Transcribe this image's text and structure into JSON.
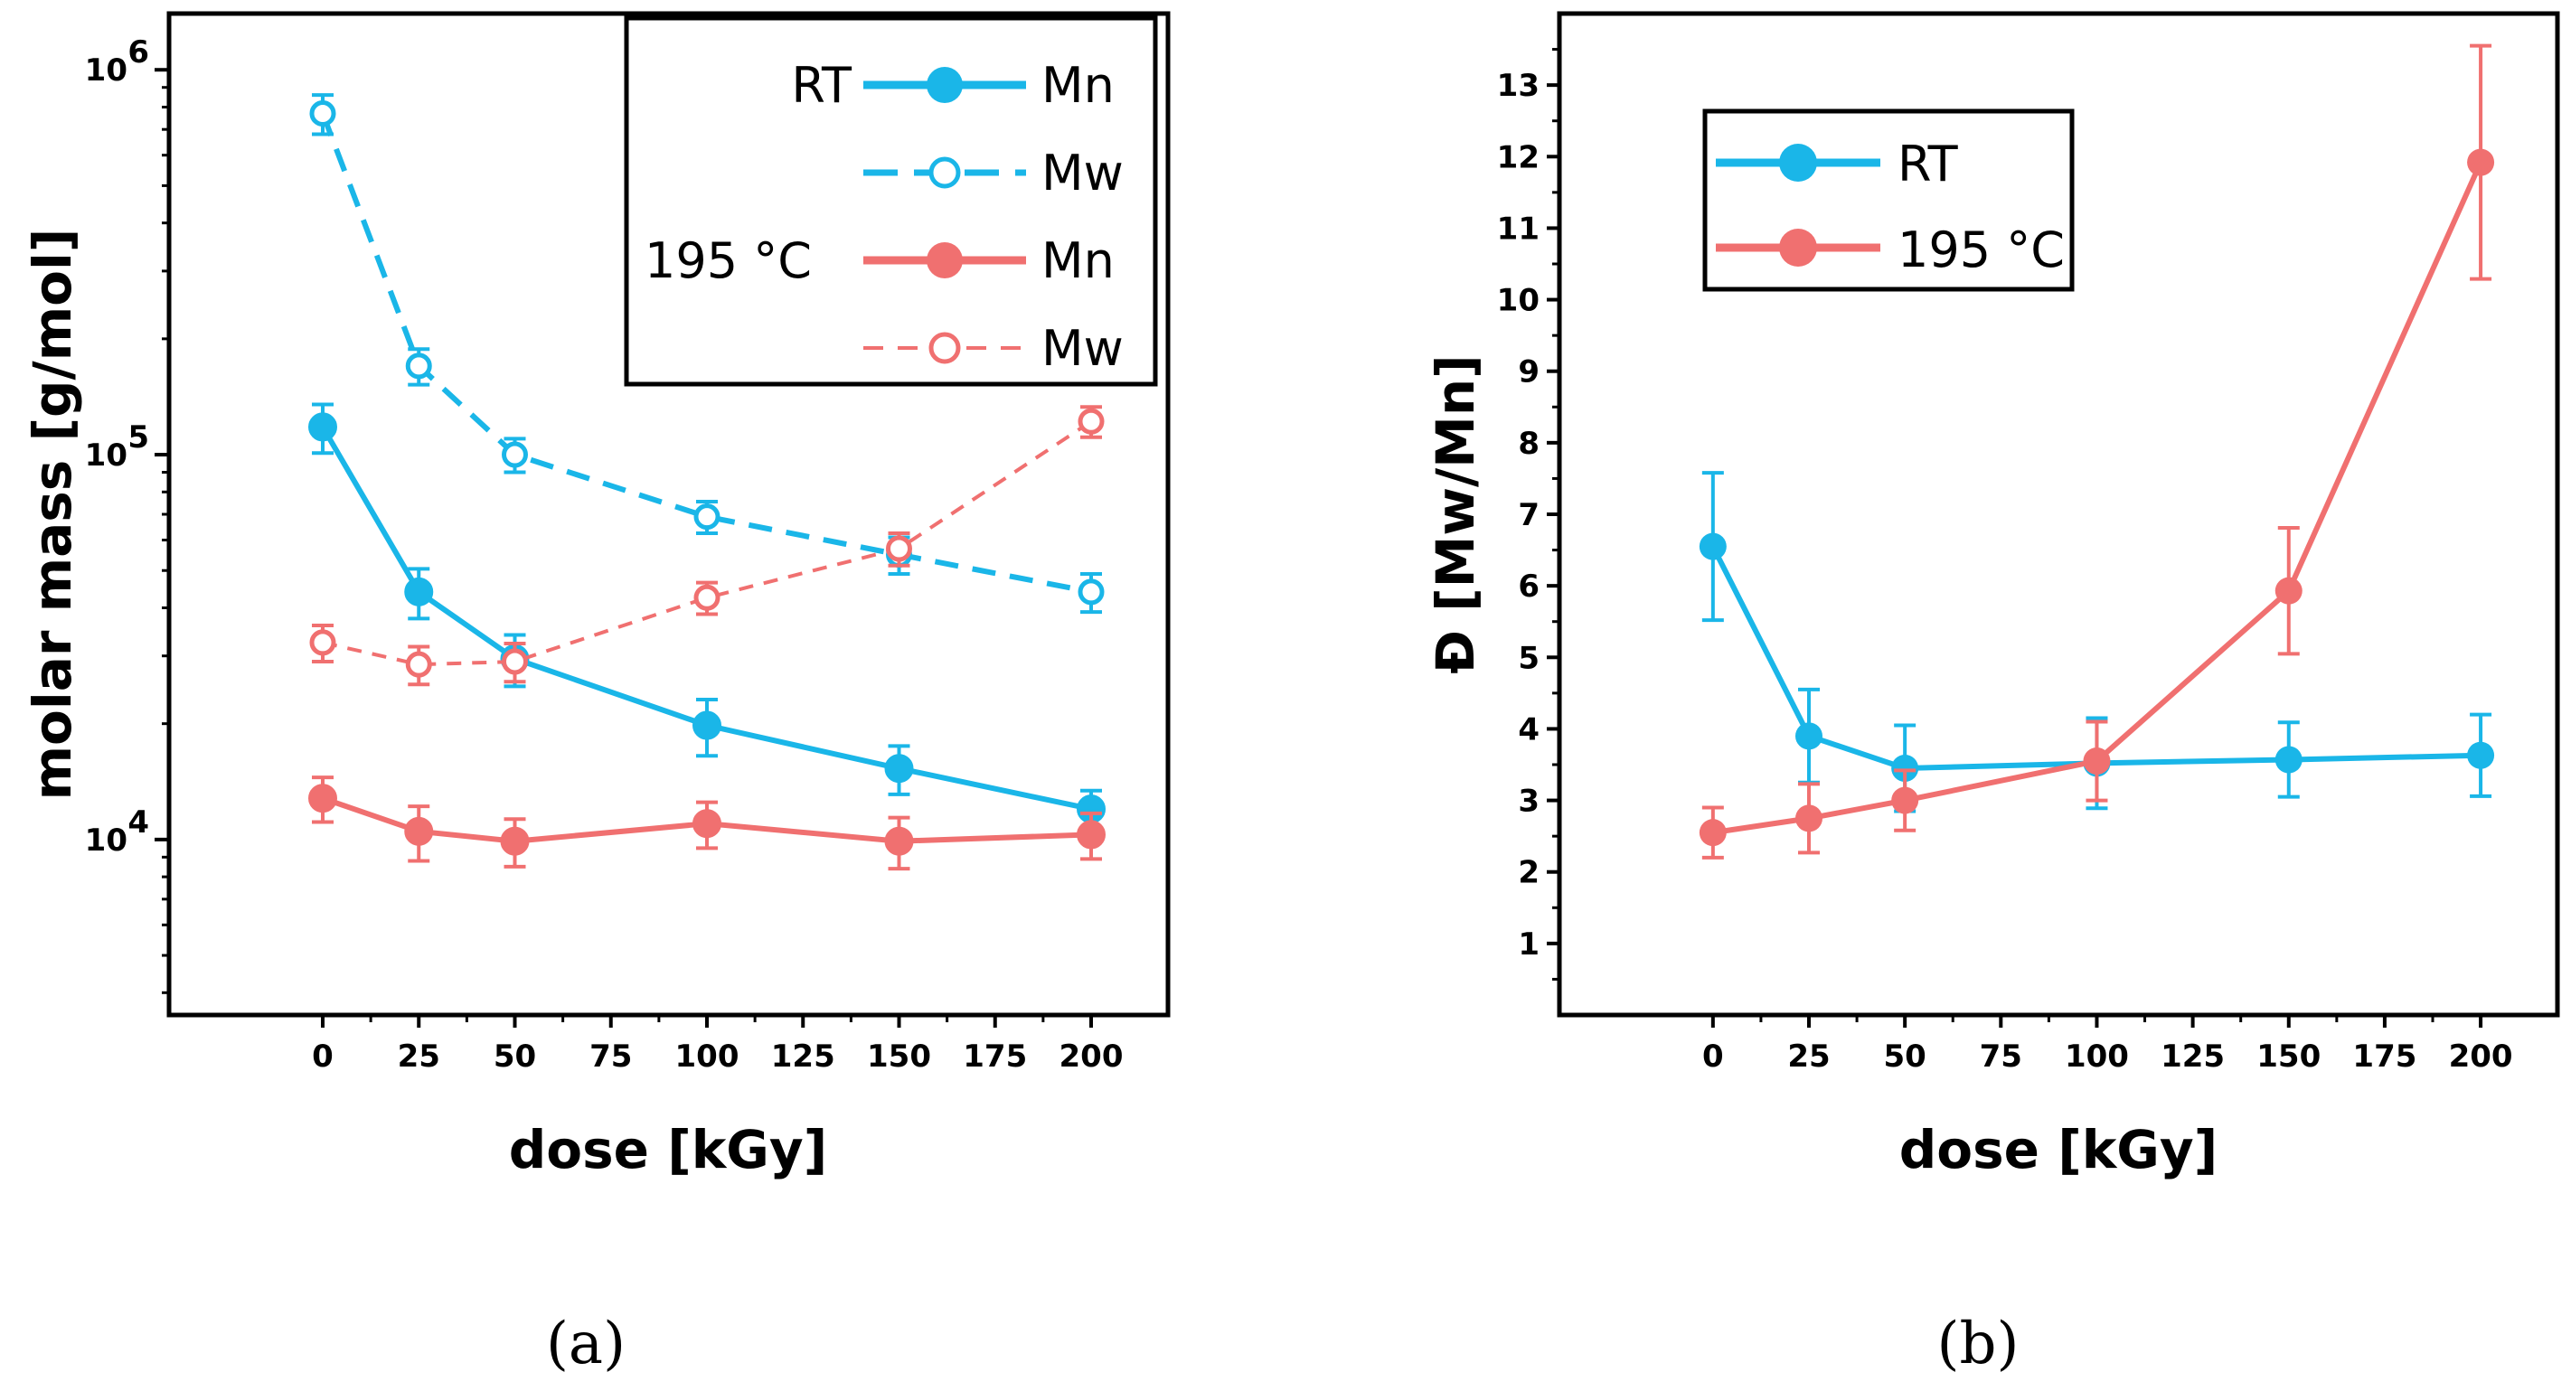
{
  "colors": {
    "rt": "#1ab6e8",
    "t195": "#f07070",
    "axis": "#000000"
  },
  "panels": [
    {
      "label": "(a)"
    },
    {
      "label": "(b)"
    }
  ],
  "chart_data": [
    {
      "type": "line",
      "title": "",
      "xlabel": "dose [kGy]",
      "ylabel": "molar mass [g/mol]",
      "yscale": "log",
      "xlim": [
        -40,
        220
      ],
      "ylim": [
        3500,
        1400000
      ],
      "xticks": [
        0,
        25,
        50,
        75,
        100,
        125,
        150,
        175,
        200
      ],
      "yticks": [
        {
          "value": 10000,
          "mantissa": "10",
          "exponent": "4"
        },
        {
          "value": 100000,
          "mantissa": "10",
          "exponent": "5"
        },
        {
          "value": 1000000,
          "mantissa": "10",
          "exponent": "6"
        }
      ],
      "legend": {
        "position": "top-right",
        "group_labels": [
          "RT",
          "195 °C"
        ],
        "entries": [
          {
            "label": "Mn",
            "series": 0
          },
          {
            "label": "Mw",
            "series": 1
          },
          {
            "label": "Mn",
            "series": 2
          },
          {
            "label": "Mw",
            "series": 3
          }
        ]
      },
      "x": [
        0,
        25,
        50,
        100,
        150,
        200
      ],
      "series": [
        {
          "name": "RT Mn",
          "group": "RT",
          "marker": "filled",
          "line": "solid",
          "color": "#1ab6e8",
          "values": [
            118000,
            44000,
            29500,
            19800,
            15300,
            12000
          ],
          "errors": [
            17000,
            6500,
            4500,
            3300,
            2200,
            1400
          ]
        },
        {
          "name": "RT Mw",
          "group": "RT",
          "marker": "open",
          "line": "dashed",
          "color": "#1ab6e8",
          "values": [
            770000,
            170000,
            100000,
            69000,
            55000,
            44000
          ],
          "errors": [
            90000,
            18000,
            10000,
            6500,
            6000,
            5000
          ]
        },
        {
          "name": "195 °C Mn",
          "group": "195 °C",
          "marker": "filled",
          "line": "solid",
          "color": "#f07070",
          "values": [
            12800,
            10500,
            9900,
            11000,
            9900,
            10300
          ],
          "errors": [
            1700,
            1700,
            1400,
            1500,
            1500,
            1400
          ]
        },
        {
          "name": "195 °C Mw",
          "group": "195 °C",
          "marker": "open",
          "line": "dashed",
          "color": "#f07070",
          "values": [
            32500,
            28500,
            29000,
            42500,
            57000,
            122000
          ],
          "errors": [
            3500,
            3200,
            3300,
            4000,
            5500,
            11000
          ]
        }
      ]
    },
    {
      "type": "line",
      "title": "",
      "xlabel": "dose [kGy]",
      "ylabel": "Đ [Mw/Mn]",
      "xlim": [
        -40,
        220
      ],
      "ylim": [
        0,
        14
      ],
      "xticks": [
        0,
        25,
        50,
        75,
        100,
        125,
        150,
        175,
        200
      ],
      "yticks": [
        1,
        2,
        3,
        4,
        5,
        6,
        7,
        8,
        9,
        10,
        11,
        12,
        13
      ],
      "legend": {
        "position": "top-left",
        "entries": [
          {
            "label": "RT",
            "series": 0
          },
          {
            "label": "195 °C",
            "series": 1
          }
        ]
      },
      "x": [
        0,
        25,
        50,
        100,
        150,
        200
      ],
      "series": [
        {
          "name": "RT",
          "color": "#1ab6e8",
          "values": [
            6.55,
            3.9,
            3.45,
            3.52,
            3.57,
            3.63
          ],
          "errors": [
            1.03,
            0.65,
            0.6,
            0.63,
            0.52,
            0.57
          ]
        },
        {
          "name": "195 °C",
          "color": "#f07070",
          "values": [
            2.55,
            2.75,
            3.0,
            3.55,
            5.93,
            11.92
          ],
          "errors": [
            0.35,
            0.48,
            0.42,
            0.55,
            0.88,
            1.63
          ]
        }
      ]
    }
  ]
}
